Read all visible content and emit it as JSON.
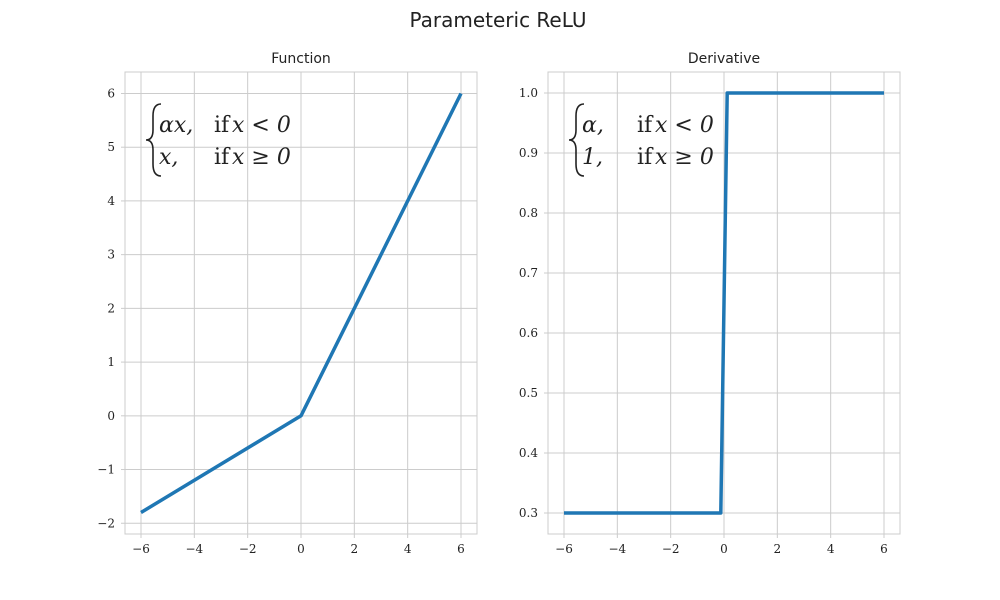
{
  "figure": {
    "title": "Parameteric ReLU"
  },
  "chart_data": [
    {
      "type": "line",
      "title": "Function",
      "xlabel": "",
      "ylabel": "",
      "xlim": [
        -6.6,
        6.6
      ],
      "ylim": [
        -2.2,
        6.4
      ],
      "xticks": [
        -6,
        -4,
        -2,
        0,
        2,
        4,
        6
      ],
      "xtick_labels": [
        "−6",
        "−4",
        "−2",
        "0",
        "2",
        "4",
        "6"
      ],
      "yticks": [
        -2,
        -1,
        0,
        1,
        2,
        3,
        4,
        5,
        6
      ],
      "ytick_labels": [
        "−2",
        "−1",
        "0",
        "1",
        "2",
        "3",
        "4",
        "5",
        "6"
      ],
      "grid": true,
      "series": [
        {
          "color": "#1f77b4",
          "x": [
            -6,
            0,
            6
          ],
          "y": [
            -1.8,
            0,
            6
          ]
        }
      ],
      "annotation": {
        "cases": [
          {
            "expr": "αx,",
            "cond": "if",
            "rel": "x < 0"
          },
          {
            "expr": "x,",
            "cond": "if",
            "rel": "x ≥ 0"
          }
        ]
      }
    },
    {
      "type": "line",
      "title": "Derivative",
      "xlabel": "",
      "ylabel": "",
      "xlim": [
        -6.6,
        6.6
      ],
      "ylim": [
        0.265,
        1.035
      ],
      "xticks": [
        -6,
        -4,
        -2,
        0,
        2,
        4,
        6
      ],
      "xtick_labels": [
        "−6",
        "−4",
        "−2",
        "0",
        "2",
        "4",
        "6"
      ],
      "yticks": [
        0.3,
        0.4,
        0.5,
        0.6,
        0.7,
        0.8,
        0.9,
        1.0
      ],
      "ytick_labels": [
        "0.3",
        "0.4",
        "0.5",
        "0.6",
        "0.7",
        "0.8",
        "0.9",
        "1.0"
      ],
      "grid": true,
      "series": [
        {
          "color": "#1f77b4",
          "x": [
            -6,
            -0.12,
            0.12,
            6
          ],
          "y": [
            0.3,
            0.3,
            1.0,
            1.0
          ]
        }
      ],
      "annotation": {
        "cases": [
          {
            "expr": "α,",
            "cond": "if",
            "rel": "x < 0"
          },
          {
            "expr": "1,",
            "cond": "if",
            "rel": "x ≥ 0"
          }
        ]
      }
    }
  ]
}
